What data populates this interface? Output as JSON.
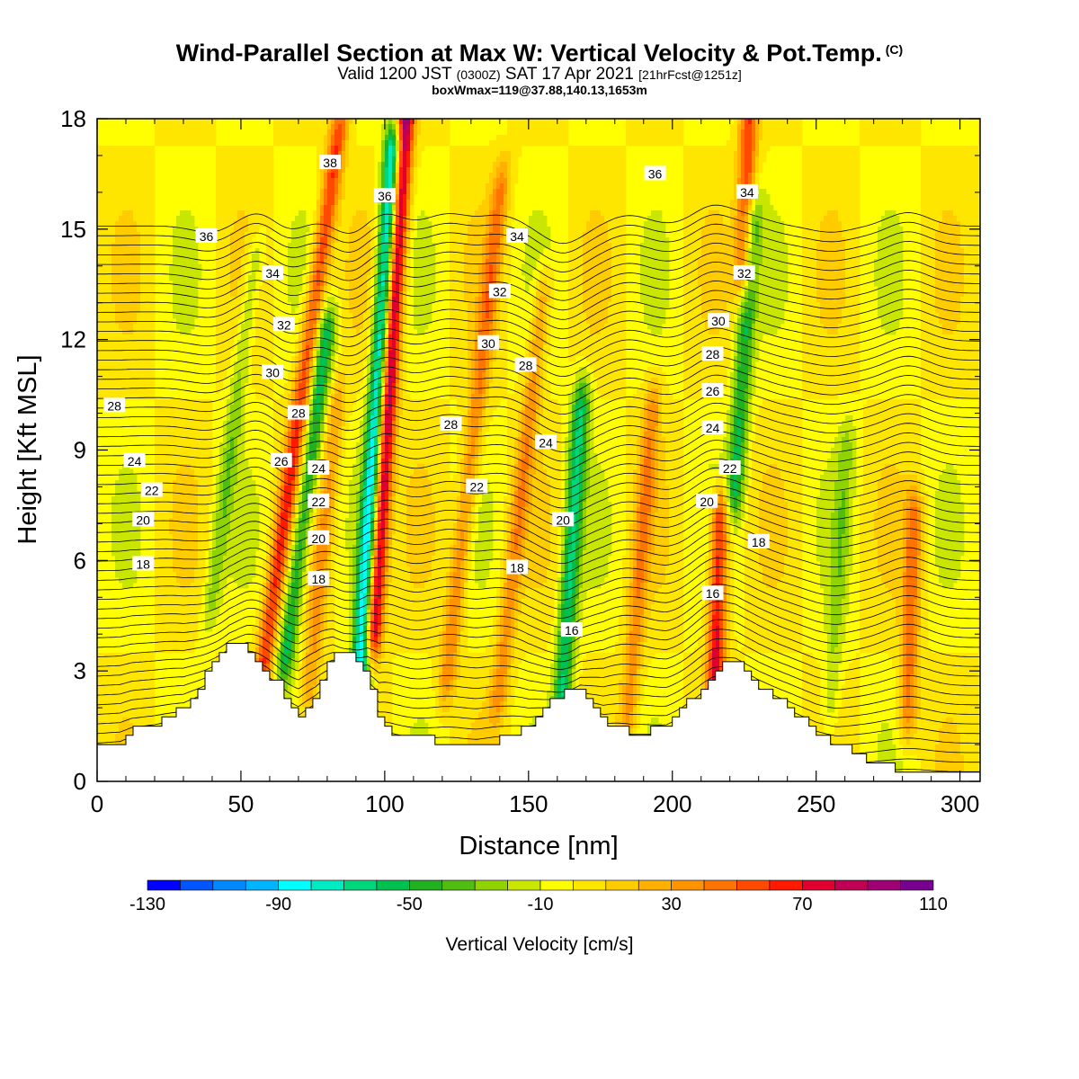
{
  "header": {
    "title": "Wind-Parallel Section at Max W: Vertical Velocity & Pot.Temp.",
    "title_mark": "(C)",
    "valid_a": "Valid 1200 JST",
    "valid_b": "(0300Z)",
    "valid_c": "SAT 17 Apr 2021",
    "valid_d": "[21hrFcst@1251z]",
    "boxinfo": "boxWmax=119@37.88,140.13,1653m"
  },
  "chart_data": {
    "type": "heatmap",
    "xlabel": "Distance [nm]",
    "ylabel": "Height [Kft MSL]",
    "xlim": [
      0,
      307
    ],
    "ylim": [
      0,
      18
    ],
    "x_ticks": [
      0,
      50,
      100,
      150,
      200,
      250,
      300
    ],
    "y_ticks": [
      0,
      3,
      6,
      9,
      12,
      15,
      18
    ],
    "colorbar": {
      "title": "Vertical Velocity [cm/s]",
      "tick_labels": [
        "-130",
        "-90",
        "-50",
        "-10",
        "30",
        "70",
        "110"
      ],
      "levels": [
        -130,
        -120,
        -110,
        -100,
        -90,
        -80,
        -70,
        -60,
        -50,
        -40,
        -30,
        -20,
        -10,
        0,
        10,
        20,
        30,
        40,
        50,
        60,
        70,
        80,
        90,
        100,
        110
      ],
      "colors": [
        "#0000ff",
        "#0055ff",
        "#0088ff",
        "#00b4ff",
        "#00ffff",
        "#00ebc2",
        "#00d67a",
        "#00c050",
        "#20b020",
        "#50be10",
        "#8fd400",
        "#c8e600",
        "#ffff00",
        "#ffe600",
        "#ffcc00",
        "#ffb000",
        "#ff9400",
        "#ff7400",
        "#ff4a00",
        "#ff1a00",
        "#e00030",
        "#c00055",
        "#a00075",
        "#78008f"
      ]
    },
    "vertical_velocity_features": [
      {
        "x": 58,
        "z_range": [
          3.2,
          17.5
        ],
        "w": 60,
        "lean": 0.45
      },
      {
        "x": 66,
        "z_range": [
          3.5,
          12
        ],
        "w": -55,
        "lean": 0.4
      },
      {
        "x": 74,
        "z_range": [
          2.5,
          10
        ],
        "w": 30,
        "lean": 0.3
      },
      {
        "x": 92,
        "z_range": [
          3.2,
          17
        ],
        "w": -105,
        "lean": 0.2
      },
      {
        "x": 96,
        "z_range": [
          4.2,
          18
        ],
        "w": 110,
        "lean": 0.2
      },
      {
        "x": 122,
        "z_range": [
          3,
          16
        ],
        "w": 40,
        "lean": 0.35
      },
      {
        "x": 140,
        "z_range": [
          2.5,
          13
        ],
        "w": 35,
        "lean": 0.35
      },
      {
        "x": 162,
        "z_range": [
          2.5,
          10
        ],
        "w": -60,
        "lean": 0.2
      },
      {
        "x": 185,
        "z_range": [
          2,
          10
        ],
        "w": 35,
        "lean": 0.25
      },
      {
        "x": 215,
        "z_range": [
          3,
          7
        ],
        "w": 75,
        "lean": 0.1
      },
      {
        "x": 222,
        "z_range": [
          8,
          15
        ],
        "w": -50,
        "lean": 0.2
      },
      {
        "x": 225,
        "z_range": [
          14,
          18
        ],
        "w": 60,
        "lean": 0.1
      },
      {
        "x": 282,
        "z_range": [
          2,
          7
        ],
        "w": 45,
        "lean": 0.1
      },
      {
        "x": 40,
        "z_range": [
          5,
          14
        ],
        "w": -25,
        "lean": 0.4
      },
      {
        "x": 255,
        "z_range": [
          2,
          9
        ],
        "w": -20,
        "lean": 0.2
      }
    ],
    "terrain": [
      [
        0,
        1.0
      ],
      [
        8,
        1.1
      ],
      [
        12,
        1.4
      ],
      [
        20,
        1.6
      ],
      [
        30,
        2.0
      ],
      [
        40,
        3.2
      ],
      [
        46,
        3.8
      ],
      [
        52,
        3.6
      ],
      [
        58,
        3.0
      ],
      [
        63,
        2.6
      ],
      [
        70,
        1.7
      ],
      [
        76,
        2.4
      ],
      [
        82,
        3.6
      ],
      [
        88,
        3.6
      ],
      [
        94,
        2.8
      ],
      [
        98,
        1.5
      ],
      [
        104,
        1.3
      ],
      [
        118,
        1.1
      ],
      [
        132,
        1.0
      ],
      [
        142,
        1.2
      ],
      [
        150,
        1.5
      ],
      [
        158,
        2.2
      ],
      [
        168,
        2.6
      ],
      [
        176,
        1.6
      ],
      [
        186,
        1.3
      ],
      [
        198,
        1.5
      ],
      [
        208,
        2.4
      ],
      [
        214,
        3.0
      ],
      [
        222,
        3.3
      ],
      [
        230,
        2.6
      ],
      [
        240,
        2.0
      ],
      [
        250,
        1.3
      ],
      [
        262,
        0.8
      ],
      [
        272,
        0.4
      ],
      [
        285,
        0.3
      ],
      [
        307,
        0.3
      ]
    ],
    "theta_contour_labels": [
      {
        "text": "38",
        "x": 81,
        "z": 16.8
      },
      {
        "text": "36",
        "x": 38,
        "z": 14.8
      },
      {
        "text": "36",
        "x": 100,
        "z": 15.9
      },
      {
        "text": "36",
        "x": 194,
        "z": 16.5
      },
      {
        "text": "34",
        "x": 61,
        "z": 13.8
      },
      {
        "text": "34",
        "x": 146,
        "z": 14.8
      },
      {
        "text": "34",
        "x": 226,
        "z": 16.0
      },
      {
        "text": "32",
        "x": 65,
        "z": 12.4
      },
      {
        "text": "32",
        "x": 140,
        "z": 13.3
      },
      {
        "text": "32",
        "x": 225,
        "z": 13.8
      },
      {
        "text": "30",
        "x": 61,
        "z": 11.1
      },
      {
        "text": "30",
        "x": 136,
        "z": 11.9
      },
      {
        "text": "30",
        "x": 216,
        "z": 12.5
      },
      {
        "text": "28",
        "x": 6,
        "z": 10.2
      },
      {
        "text": "28",
        "x": 70,
        "z": 10.0
      },
      {
        "text": "28",
        "x": 149,
        "z": 11.3
      },
      {
        "text": "28",
        "x": 123,
        "z": 9.7
      },
      {
        "text": "28",
        "x": 214,
        "z": 11.6
      },
      {
        "text": "26",
        "x": 64,
        "z": 8.7
      },
      {
        "text": "26",
        "x": 214,
        "z": 10.6
      },
      {
        "text": "24",
        "x": 13,
        "z": 8.7
      },
      {
        "text": "24",
        "x": 77,
        "z": 8.5
      },
      {
        "text": "24",
        "x": 156,
        "z": 9.2
      },
      {
        "text": "24",
        "x": 214,
        "z": 9.6
      },
      {
        "text": "22",
        "x": 19,
        "z": 7.9
      },
      {
        "text": "22",
        "x": 77,
        "z": 7.6
      },
      {
        "text": "22",
        "x": 132,
        "z": 8.0
      },
      {
        "text": "22",
        "x": 220,
        "z": 8.5
      },
      {
        "text": "20",
        "x": 16,
        "z": 7.1
      },
      {
        "text": "20",
        "x": 77,
        "z": 6.6
      },
      {
        "text": "20",
        "x": 162,
        "z": 7.1
      },
      {
        "text": "20",
        "x": 212,
        "z": 7.6
      },
      {
        "text": "18",
        "x": 16,
        "z": 5.9
      },
      {
        "text": "18",
        "x": 77,
        "z": 5.5
      },
      {
        "text": "18",
        "x": 146,
        "z": 5.8
      },
      {
        "text": "18",
        "x": 230,
        "z": 6.5
      },
      {
        "text": "16",
        "x": 165,
        "z": 4.1
      },
      {
        "text": "16",
        "x": 214,
        "z": 5.1
      }
    ]
  }
}
